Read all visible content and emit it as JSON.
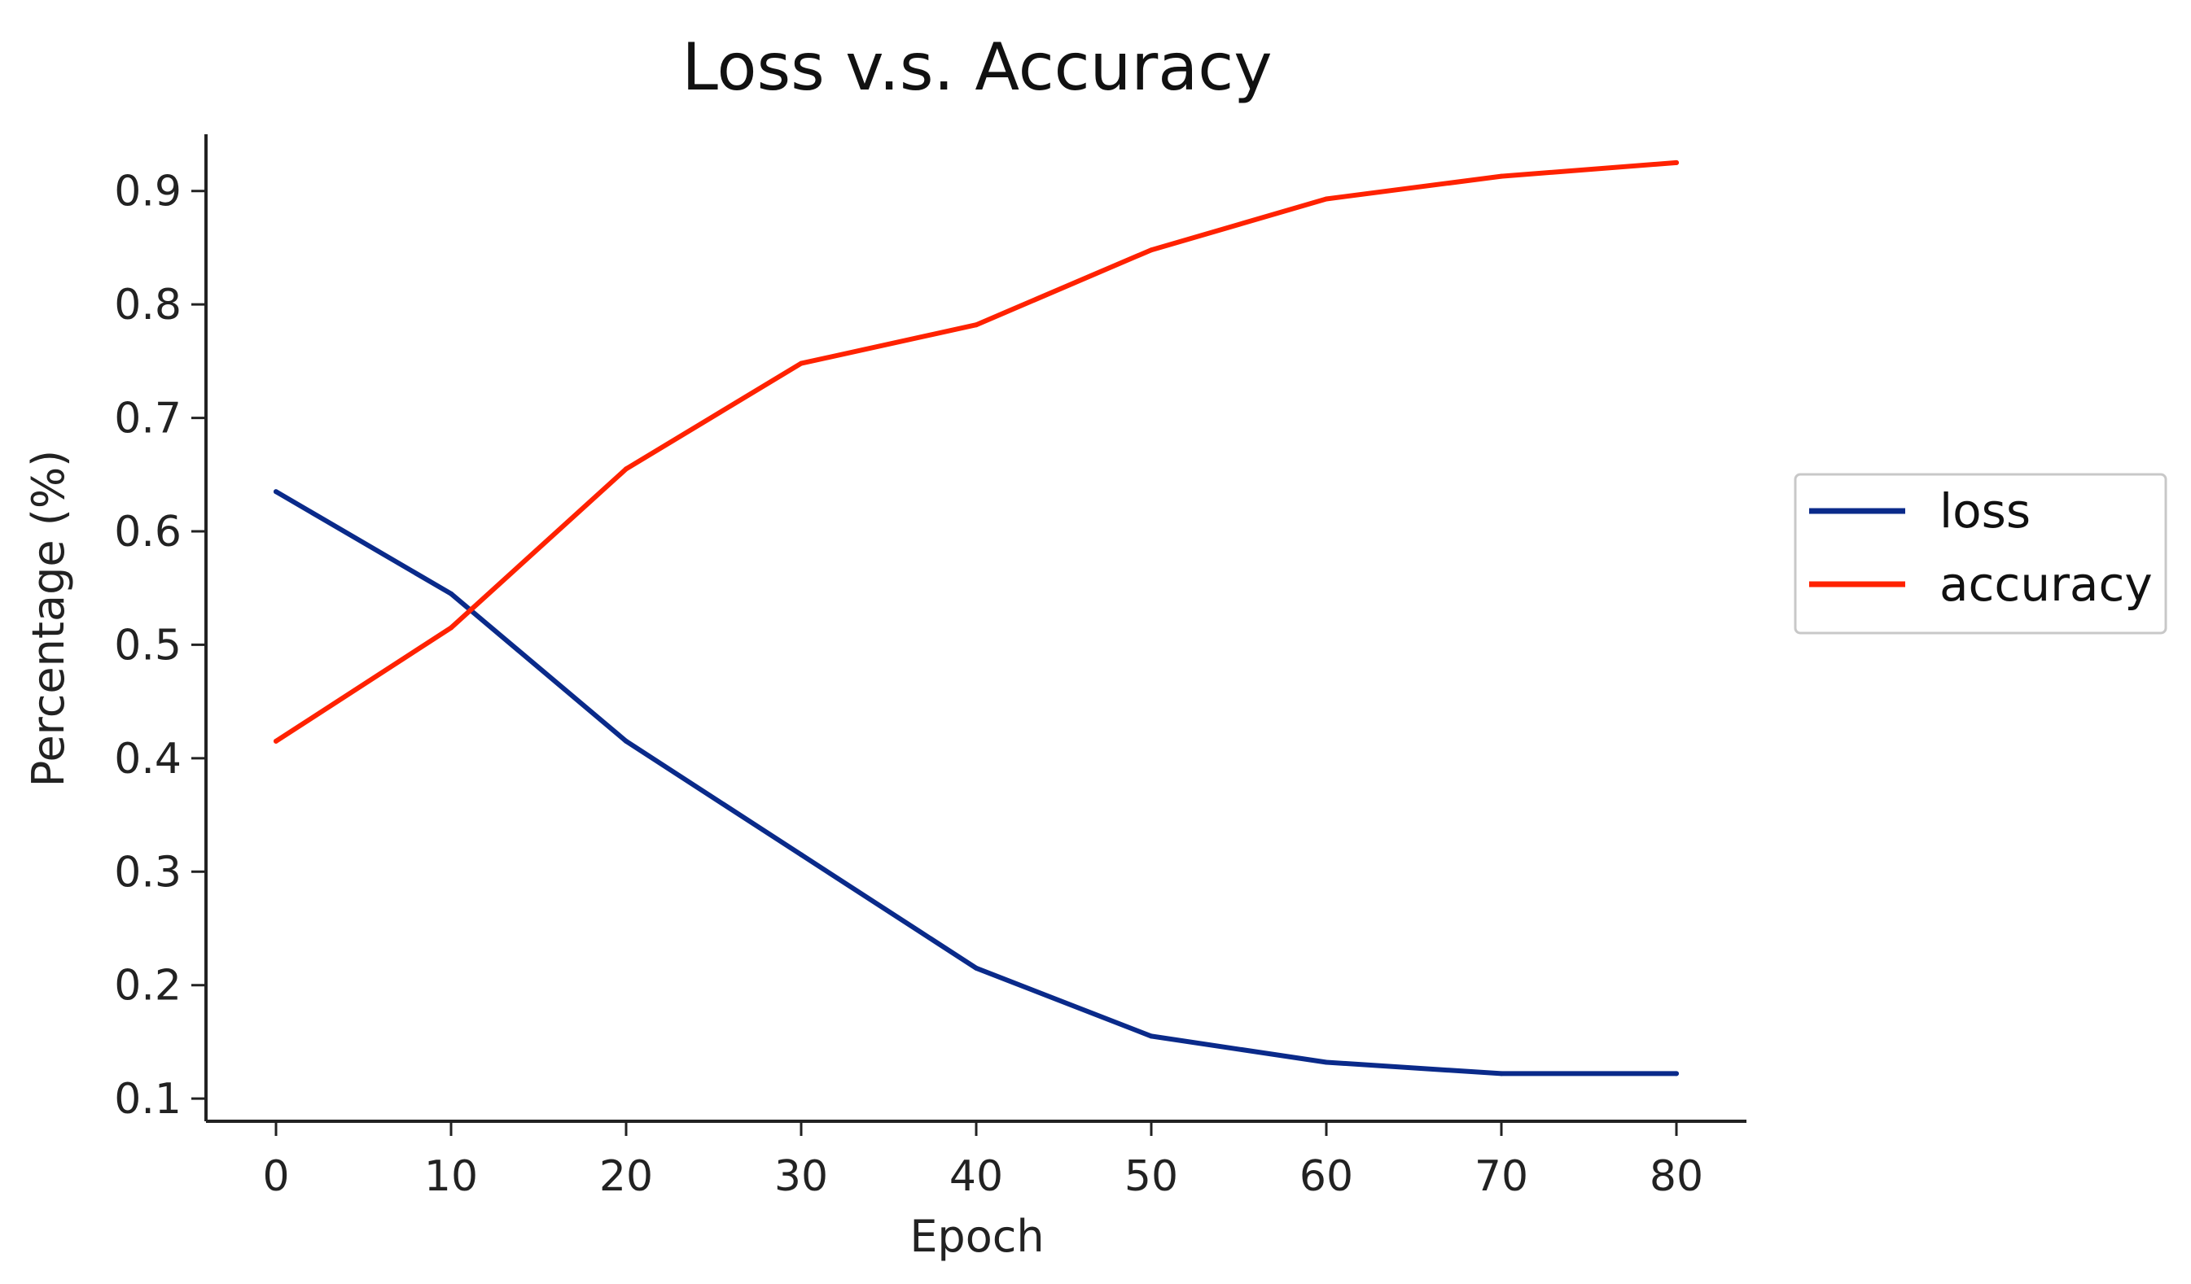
{
  "chart_data": {
    "type": "line",
    "title": "Loss v.s. Accuracy",
    "xlabel": "Epoch",
    "ylabel": "Percentage (%)",
    "xlim": [
      -4,
      84
    ],
    "ylim": [
      0.08,
      0.95
    ],
    "xticks": [
      0,
      10,
      20,
      30,
      40,
      50,
      60,
      70,
      80
    ],
    "yticks": [
      0.1,
      0.2,
      0.3,
      0.4,
      0.5,
      0.6,
      0.7,
      0.8,
      0.9
    ],
    "grid": false,
    "legend_position": "right",
    "series": [
      {
        "name": "loss",
        "color": "#0a2a8a",
        "x": [
          0,
          10,
          20,
          30,
          40,
          50,
          60,
          70,
          80
        ],
        "y": [
          0.635,
          0.545,
          0.415,
          0.315,
          0.215,
          0.155,
          0.132,
          0.122,
          0.122
        ]
      },
      {
        "name": "accuracy",
        "color": "#ff2200",
        "x": [
          0,
          10,
          20,
          30,
          40,
          50,
          60,
          70,
          80
        ],
        "y": [
          0.415,
          0.515,
          0.655,
          0.748,
          0.782,
          0.848,
          0.893,
          0.913,
          0.925
        ]
      }
    ]
  }
}
